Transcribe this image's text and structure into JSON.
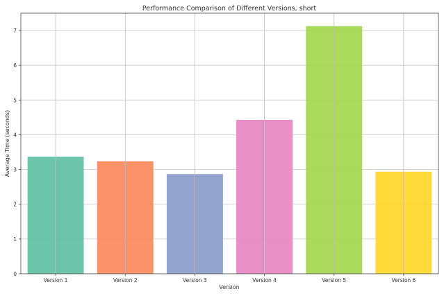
{
  "chart_data": {
    "type": "bar",
    "title": "Performance Comparison of Different Versions, short",
    "xlabel": "Version",
    "ylabel": "Average Time (seconds)",
    "categories": [
      "Version 1",
      "Version 2",
      "Version 3",
      "Version 4",
      "Version 5",
      "Version 6"
    ],
    "values": [
      3.36,
      3.23,
      2.86,
      4.42,
      7.12,
      2.93
    ],
    "colors": [
      "#66c2a5",
      "#fc8d62",
      "#8da0cb",
      "#e78ac3",
      "#a6d854",
      "#ffd92f"
    ],
    "ylim": [
      0,
      7.5
    ],
    "yticks": [
      0,
      1,
      2,
      3,
      4,
      5,
      6,
      7
    ],
    "grid": true
  }
}
